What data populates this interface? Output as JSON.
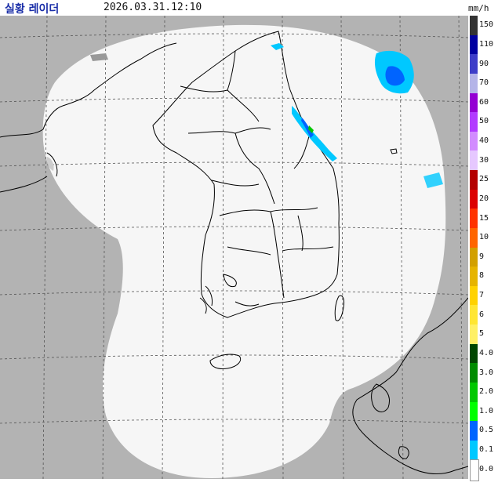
{
  "header": {
    "title": "실황 레이더",
    "timestamp": "2026.03.31.12:10",
    "unit": "mm/h"
  },
  "legend": {
    "items": [
      {
        "label": "150",
        "color": "#333333"
      },
      {
        "label": "110",
        "color": "#0000a0"
      },
      {
        "label": "90",
        "color": "#3d3dc8"
      },
      {
        "label": "70",
        "color": "#b4b4e8"
      },
      {
        "label": "60",
        "color": "#9400d3"
      },
      {
        "label": "50",
        "color": "#b23cff"
      },
      {
        "label": "40",
        "color": "#d28cff"
      },
      {
        "label": "30",
        "color": "#e6c8ff"
      },
      {
        "label": "25",
        "color": "#b40000"
      },
      {
        "label": "20",
        "color": "#dc0000"
      },
      {
        "label": "15",
        "color": "#ff3300"
      },
      {
        "label": "10",
        "color": "#ff6600"
      },
      {
        "label": "9",
        "color": "#d2a000"
      },
      {
        "label": "8",
        "color": "#e6b400"
      },
      {
        "label": "7",
        "color": "#ffd200"
      },
      {
        "label": "6",
        "color": "#ffe633"
      },
      {
        "label": "5",
        "color": "#fff066"
      },
      {
        "label": "4.0",
        "color": "#004600"
      },
      {
        "label": "3.0",
        "color": "#008c00"
      },
      {
        "label": "2.0",
        "color": "#00c800"
      },
      {
        "label": "1.0",
        "color": "#00ff00"
      },
      {
        "label": "0.5",
        "color": "#0064ff"
      },
      {
        "label": "0.1",
        "color": "#00c8ff"
      },
      {
        "label": "0.0",
        "color": "#ffffff"
      }
    ]
  },
  "colors": {
    "outside": "#b3b3b3",
    "coverage": "#f6f6f6",
    "grid": "#555555",
    "coast": "#000000"
  },
  "map": {
    "showGrid": true
  }
}
